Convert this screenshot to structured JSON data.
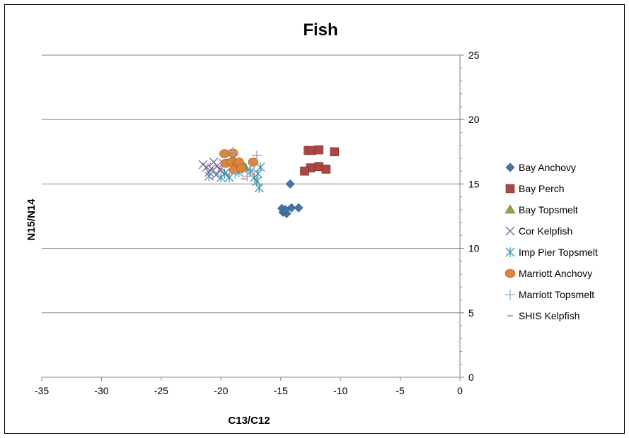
{
  "chart_data": {
    "type": "scatter",
    "title": "Fish",
    "xlabel": "C13/C12",
    "ylabel": "N15/N14",
    "xlim": [
      -35,
      0
    ],
    "ylim": [
      0,
      25
    ],
    "x_ticks": [
      "-35",
      "-30",
      "-25",
      "-20",
      "-15",
      "-10",
      "-5",
      "0"
    ],
    "y_ticks": [
      "0",
      "5",
      "10",
      "15",
      "20",
      "25"
    ],
    "grid": "horizontal",
    "legend_position": "right",
    "series": [
      {
        "name": "Bay Anchovy",
        "marker": "diamond",
        "color": "#4572a7",
        "points": [
          [
            -14.9,
            13.1
          ],
          [
            -14.8,
            12.8
          ],
          [
            -14.5,
            12.7
          ],
          [
            -14.6,
            13.0
          ],
          [
            -14.1,
            13.15
          ],
          [
            -13.5,
            13.15
          ],
          [
            -14.2,
            15.0
          ]
        ]
      },
      {
        "name": "Bay Perch",
        "marker": "square",
        "color": "#aa4643",
        "points": [
          [
            -12.7,
            17.6
          ],
          [
            -12.4,
            17.6
          ],
          [
            -11.8,
            17.65
          ],
          [
            -10.5,
            17.5
          ],
          [
            -12.5,
            16.25
          ],
          [
            -11.8,
            16.35
          ],
          [
            -13.0,
            16.0
          ],
          [
            -11.2,
            16.15
          ]
        ]
      },
      {
        "name": "Bay Topsmelt",
        "marker": "triangle",
        "color": "#89a54e",
        "points": [
          [
            -18.0,
            16.3
          ],
          [
            -19.0,
            16.9
          ]
        ]
      },
      {
        "name": "Cor Kelpfish",
        "marker": "x",
        "color": "#80699b",
        "points": [
          [
            -21.5,
            16.5
          ],
          [
            -21.2,
            16.3
          ],
          [
            -20.6,
            16.7
          ],
          [
            -20.3,
            16.4
          ],
          [
            -20.1,
            16.1
          ],
          [
            -19.8,
            16.6
          ],
          [
            -21.0,
            15.9
          ],
          [
            -20.4,
            15.7
          ],
          [
            -19.6,
            15.9
          ],
          [
            -20.8,
            16.2
          ]
        ]
      },
      {
        "name": "Imp Pier Topsmelt",
        "marker": "asterisk",
        "color": "#3d96ae",
        "points": [
          [
            -21.0,
            15.6
          ],
          [
            -20.0,
            15.5
          ],
          [
            -19.3,
            15.5
          ],
          [
            -18.5,
            15.9
          ],
          [
            -17.5,
            16.0
          ],
          [
            -17.2,
            15.5
          ],
          [
            -16.9,
            15.8
          ],
          [
            -16.7,
            16.3
          ],
          [
            -16.8,
            14.7
          ],
          [
            -17.0,
            15.2
          ],
          [
            -18.2,
            16.2
          ],
          [
            -19.7,
            15.8
          ]
        ]
      },
      {
        "name": "Marriott Anchovy",
        "marker": "circle",
        "color": "#db843d",
        "points": [
          [
            -19.7,
            17.35
          ],
          [
            -19.0,
            17.4
          ],
          [
            -19.6,
            16.6
          ],
          [
            -19.1,
            16.7
          ],
          [
            -18.6,
            16.5
          ],
          [
            -18.5,
            16.7
          ],
          [
            -18.9,
            16.1
          ],
          [
            -18.3,
            16.2
          ],
          [
            -17.3,
            16.7
          ]
        ]
      },
      {
        "name": "Marriott Topsmelt",
        "marker": "plus",
        "color": "#92a8cd",
        "points": [
          [
            -19.0,
            17.5
          ],
          [
            -17.0,
            17.2
          ],
          [
            -17.6,
            16.0
          ],
          [
            -18.8,
            15.8
          ],
          [
            -17.8,
            15.6
          ]
        ]
      },
      {
        "name": "SHIS Kelpfish",
        "marker": "dash",
        "color": "#e8a09e",
        "points": [
          [
            -18.1,
            15.4
          ],
          [
            -17.4,
            15.7
          ]
        ]
      }
    ]
  }
}
